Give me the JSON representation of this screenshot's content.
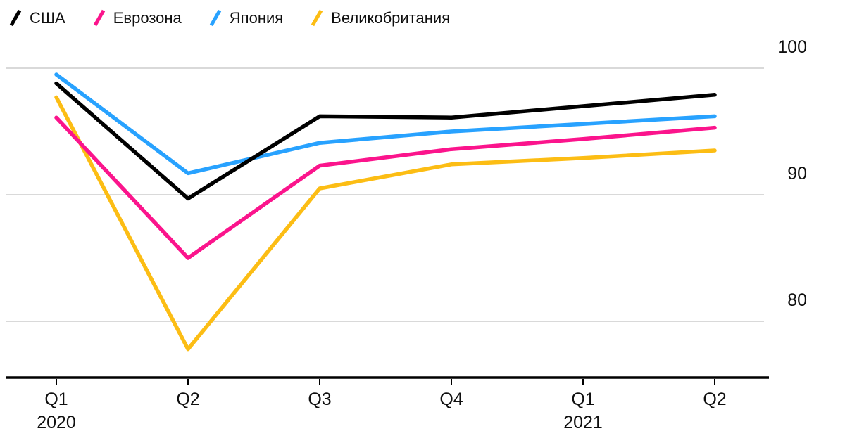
{
  "chart_data": {
    "type": "line",
    "title": "",
    "x_labels": [
      "Q1",
      "Q2",
      "Q3",
      "Q4",
      "Q1",
      "Q2"
    ],
    "x_year_labels": [
      {
        "index": 0,
        "label": "2020"
      },
      {
        "index": 4,
        "label": "2021"
      }
    ],
    "y_ticks": [
      100,
      90,
      80
    ],
    "ylim": [
      75.5,
      100.5
    ],
    "grid": true,
    "legend_position": "top-left",
    "colors": {
      "grid": "#d9d9d9",
      "axis": "#000000",
      "text": "#0f0f0f",
      "background": "#ffffff"
    },
    "series": [
      {
        "name": "США",
        "color": "#000000",
        "values": [
          98.8,
          89.7,
          96.2,
          96.1,
          97.0,
          97.9
        ]
      },
      {
        "name": "Еврозона",
        "color": "#fb148c",
        "values": [
          96.1,
          85.0,
          92.3,
          93.6,
          94.4,
          95.3
        ]
      },
      {
        "name": "Япония",
        "color": "#28a2ff",
        "values": [
          99.5,
          91.7,
          94.1,
          95.0,
          95.6,
          96.2
        ]
      },
      {
        "name": "Великобритания",
        "color": "#fcbd14",
        "values": [
          97.7,
          77.8,
          90.5,
          92.4,
          92.9,
          93.5
        ]
      }
    ]
  }
}
